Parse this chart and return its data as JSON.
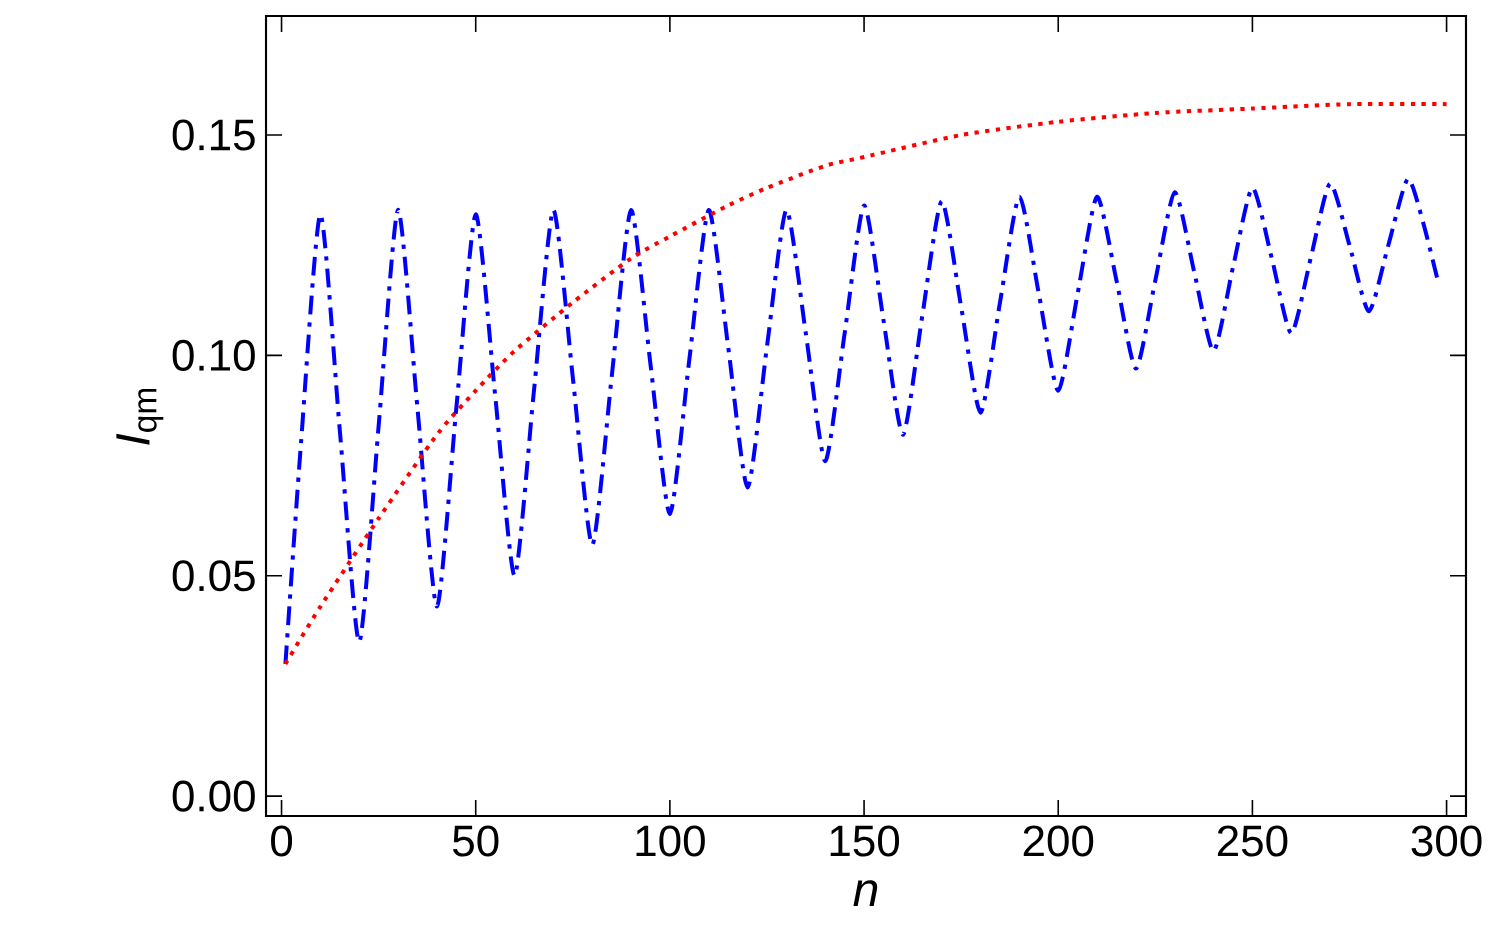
{
  "chart_data": {
    "type": "line",
    "xlabel": "n",
    "ylabel": "*I*$_{qm}$",
    "xlim": [
      -4,
      305
    ],
    "ylim": [
      -0.0045,
      0.177
    ],
    "xticks": [
      0,
      50,
      100,
      150,
      200,
      250,
      300
    ],
    "yticks": [
      {
        "value": 0,
        "label": "0.00"
      },
      {
        "value": 0.05,
        "label": "0.05"
      },
      {
        "value": 0.1,
        "label": "0.10"
      },
      {
        "value": 0.15,
        "label": "0.15"
      }
    ],
    "grid": false,
    "legend": false,
    "series": [
      {
        "color": "#0000ff",
        "line_style": "dashdot",
        "x": [
          1,
          5,
          10,
          15,
          20,
          25,
          30,
          35,
          40,
          45,
          50,
          55,
          60,
          65,
          70,
          75,
          80,
          85,
          90,
          95,
          100,
          105,
          110,
          115,
          120,
          125,
          130,
          135,
          140,
          145,
          150,
          155,
          160,
          165,
          170,
          175,
          180,
          185,
          190,
          195,
          200,
          205,
          210,
          215,
          220,
          225,
          230,
          235,
          240,
          245,
          250,
          255,
          260,
          265,
          270,
          275,
          280,
          285,
          290,
          294,
          298
        ],
        "values": [
          0.03,
          0.08,
          0.132,
          0.083,
          0.035,
          0.084,
          0.133,
          0.088,
          0.043,
          0.088,
          0.132,
          0.091,
          0.05,
          0.092,
          0.133,
          0.095,
          0.057,
          0.095,
          0.133,
          0.098,
          0.064,
          0.099,
          0.133,
          0.102,
          0.07,
          0.102,
          0.133,
          0.105,
          0.076,
          0.105,
          0.134,
          0.108,
          0.082,
          0.109,
          0.135,
          0.111,
          0.087,
          0.112,
          0.136,
          0.114,
          0.092,
          0.114,
          0.136,
          0.117,
          0.097,
          0.117,
          0.137,
          0.119,
          0.101,
          0.12,
          0.138,
          0.122,
          0.105,
          0.122,
          0.139,
          0.125,
          0.11,
          0.125,
          0.14,
          0.13,
          0.116
        ]
      },
      {
        "color": "#ff0000",
        "line_style": "dotted",
        "x": [
          1,
          10,
          25,
          40,
          50,
          60,
          75,
          90,
          100,
          115,
          125,
          140,
          150,
          175,
          200,
          225,
          250,
          275,
          300
        ],
        "values": [
          0.03,
          0.043,
          0.063,
          0.082,
          0.092,
          0.101,
          0.112,
          0.122,
          0.127,
          0.134,
          0.138,
          0.143,
          0.145,
          0.15,
          0.153,
          0.155,
          0.156,
          0.157,
          0.157
        ]
      }
    ]
  }
}
